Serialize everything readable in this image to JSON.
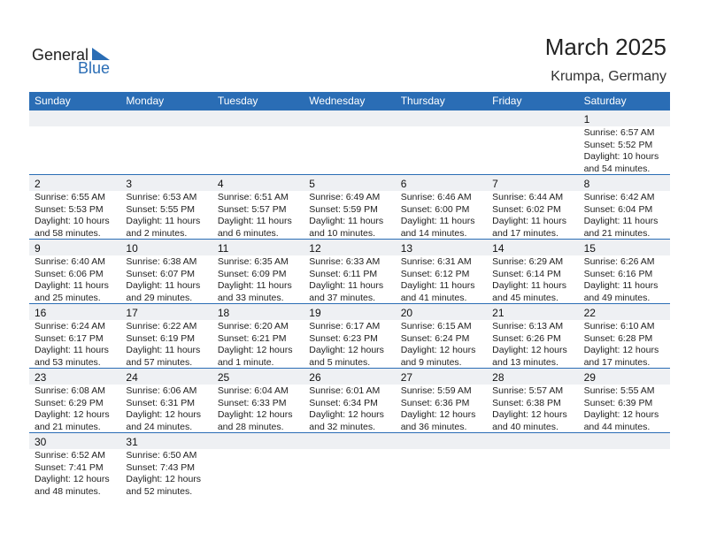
{
  "logo": {
    "line1": "General",
    "line2": "Blue"
  },
  "header": {
    "title": "March 2025",
    "location": "Krumpa, Germany"
  },
  "weekdays": [
    "Sunday",
    "Monday",
    "Tuesday",
    "Wednesday",
    "Thursday",
    "Friday",
    "Saturday"
  ],
  "weeks": [
    [
      null,
      null,
      null,
      null,
      null,
      null,
      {
        "day": 1,
        "lines": [
          "Sunrise: 6:57 AM",
          "Sunset: 5:52 PM",
          "Daylight: 10 hours",
          "and 54 minutes."
        ]
      }
    ],
    [
      {
        "day": 2,
        "lines": [
          "Sunrise: 6:55 AM",
          "Sunset: 5:53 PM",
          "Daylight: 10 hours",
          "and 58 minutes."
        ]
      },
      {
        "day": 3,
        "lines": [
          "Sunrise: 6:53 AM",
          "Sunset: 5:55 PM",
          "Daylight: 11 hours",
          "and 2 minutes."
        ]
      },
      {
        "day": 4,
        "lines": [
          "Sunrise: 6:51 AM",
          "Sunset: 5:57 PM",
          "Daylight: 11 hours",
          "and 6 minutes."
        ]
      },
      {
        "day": 5,
        "lines": [
          "Sunrise: 6:49 AM",
          "Sunset: 5:59 PM",
          "Daylight: 11 hours",
          "and 10 minutes."
        ]
      },
      {
        "day": 6,
        "lines": [
          "Sunrise: 6:46 AM",
          "Sunset: 6:00 PM",
          "Daylight: 11 hours",
          "and 14 minutes."
        ]
      },
      {
        "day": 7,
        "lines": [
          "Sunrise: 6:44 AM",
          "Sunset: 6:02 PM",
          "Daylight: 11 hours",
          "and 17 minutes."
        ]
      },
      {
        "day": 8,
        "lines": [
          "Sunrise: 6:42 AM",
          "Sunset: 6:04 PM",
          "Daylight: 11 hours",
          "and 21 minutes."
        ]
      }
    ],
    [
      {
        "day": 9,
        "lines": [
          "Sunrise: 6:40 AM",
          "Sunset: 6:06 PM",
          "Daylight: 11 hours",
          "and 25 minutes."
        ]
      },
      {
        "day": 10,
        "lines": [
          "Sunrise: 6:38 AM",
          "Sunset: 6:07 PM",
          "Daylight: 11 hours",
          "and 29 minutes."
        ]
      },
      {
        "day": 11,
        "lines": [
          "Sunrise: 6:35 AM",
          "Sunset: 6:09 PM",
          "Daylight: 11 hours",
          "and 33 minutes."
        ]
      },
      {
        "day": 12,
        "lines": [
          "Sunrise: 6:33 AM",
          "Sunset: 6:11 PM",
          "Daylight: 11 hours",
          "and 37 minutes."
        ]
      },
      {
        "day": 13,
        "lines": [
          "Sunrise: 6:31 AM",
          "Sunset: 6:12 PM",
          "Daylight: 11 hours",
          "and 41 minutes."
        ]
      },
      {
        "day": 14,
        "lines": [
          "Sunrise: 6:29 AM",
          "Sunset: 6:14 PM",
          "Daylight: 11 hours",
          "and 45 minutes."
        ]
      },
      {
        "day": 15,
        "lines": [
          "Sunrise: 6:26 AM",
          "Sunset: 6:16 PM",
          "Daylight: 11 hours",
          "and 49 minutes."
        ]
      }
    ],
    [
      {
        "day": 16,
        "lines": [
          "Sunrise: 6:24 AM",
          "Sunset: 6:17 PM",
          "Daylight: 11 hours",
          "and 53 minutes."
        ]
      },
      {
        "day": 17,
        "lines": [
          "Sunrise: 6:22 AM",
          "Sunset: 6:19 PM",
          "Daylight: 11 hours",
          "and 57 minutes."
        ]
      },
      {
        "day": 18,
        "lines": [
          "Sunrise: 6:20 AM",
          "Sunset: 6:21 PM",
          "Daylight: 12 hours",
          "and 1 minute."
        ]
      },
      {
        "day": 19,
        "lines": [
          "Sunrise: 6:17 AM",
          "Sunset: 6:23 PM",
          "Daylight: 12 hours",
          "and 5 minutes."
        ]
      },
      {
        "day": 20,
        "lines": [
          "Sunrise: 6:15 AM",
          "Sunset: 6:24 PM",
          "Daylight: 12 hours",
          "and 9 minutes."
        ]
      },
      {
        "day": 21,
        "lines": [
          "Sunrise: 6:13 AM",
          "Sunset: 6:26 PM",
          "Daylight: 12 hours",
          "and 13 minutes."
        ]
      },
      {
        "day": 22,
        "lines": [
          "Sunrise: 6:10 AM",
          "Sunset: 6:28 PM",
          "Daylight: 12 hours",
          "and 17 minutes."
        ]
      }
    ],
    [
      {
        "day": 23,
        "lines": [
          "Sunrise: 6:08 AM",
          "Sunset: 6:29 PM",
          "Daylight: 12 hours",
          "and 21 minutes."
        ]
      },
      {
        "day": 24,
        "lines": [
          "Sunrise: 6:06 AM",
          "Sunset: 6:31 PM",
          "Daylight: 12 hours",
          "and 24 minutes."
        ]
      },
      {
        "day": 25,
        "lines": [
          "Sunrise: 6:04 AM",
          "Sunset: 6:33 PM",
          "Daylight: 12 hours",
          "and 28 minutes."
        ]
      },
      {
        "day": 26,
        "lines": [
          "Sunrise: 6:01 AM",
          "Sunset: 6:34 PM",
          "Daylight: 12 hours",
          "and 32 minutes."
        ]
      },
      {
        "day": 27,
        "lines": [
          "Sunrise: 5:59 AM",
          "Sunset: 6:36 PM",
          "Daylight: 12 hours",
          "and 36 minutes."
        ]
      },
      {
        "day": 28,
        "lines": [
          "Sunrise: 5:57 AM",
          "Sunset: 6:38 PM",
          "Daylight: 12 hours",
          "and 40 minutes."
        ]
      },
      {
        "day": 29,
        "lines": [
          "Sunrise: 5:55 AM",
          "Sunset: 6:39 PM",
          "Daylight: 12 hours",
          "and 44 minutes."
        ]
      }
    ],
    [
      {
        "day": 30,
        "lines": [
          "Sunrise: 6:52 AM",
          "Sunset: 7:41 PM",
          "Daylight: 12 hours",
          "and 48 minutes."
        ]
      },
      {
        "day": 31,
        "lines": [
          "Sunrise: 6:50 AM",
          "Sunset: 7:43 PM",
          "Daylight: 12 hours",
          "and 52 minutes."
        ]
      },
      null,
      null,
      null,
      null,
      null
    ]
  ]
}
